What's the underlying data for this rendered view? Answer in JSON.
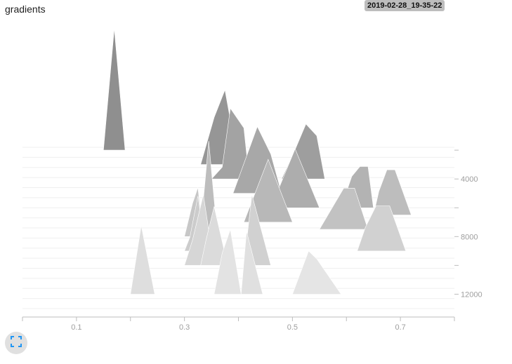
{
  "header": {
    "title": "gradients",
    "run_timestamp": "2019-02-28_19-35-22"
  },
  "controls": {
    "fit_icon": "fit-to-domain-icon",
    "accent_color": "#2196f3"
  },
  "chart_data": {
    "type": "area",
    "style": "offset histogram (ridgeline)",
    "title": "gradients",
    "x_ticks": [
      "0.1",
      "0.3",
      "0.5",
      "0.7"
    ],
    "y_ticks": [
      "4000",
      "8000",
      "12000"
    ],
    "xlim": [
      0.0,
      0.8
    ],
    "ylim": [
      1800,
      13000
    ],
    "grid": false,
    "series": [
      {
        "step": 2000,
        "color": "#8f8f8f",
        "points": [
          [
            0.15,
            0
          ],
          [
            0.17,
            6.2
          ],
          [
            0.19,
            0
          ]
        ]
      },
      {
        "step": 3000,
        "color": "#969696",
        "points": [
          [
            0.33,
            0
          ],
          [
            0.355,
            2.4
          ],
          [
            0.375,
            3.8
          ],
          [
            0.4,
            0
          ]
        ]
      },
      {
        "step": 4000,
        "color": "#a3a3a3",
        "points": [
          [
            0.35,
            0
          ],
          [
            0.37,
            0.6
          ],
          [
            0.385,
            3.6
          ],
          [
            0.41,
            2.6
          ],
          [
            0.42,
            0
          ]
        ]
      },
      {
        "step": 4000,
        "color": "#9e9e9e",
        "points": [
          [
            0.48,
            0
          ],
          [
            0.505,
            1.5
          ],
          [
            0.525,
            2.8
          ],
          [
            0.545,
            2.2
          ],
          [
            0.56,
            0
          ]
        ]
      },
      {
        "step": 5000,
        "color": "#a8a8a8",
        "points": [
          [
            0.39,
            0
          ],
          [
            0.435,
            3.4
          ],
          [
            0.46,
            2.0
          ],
          [
            0.48,
            0
          ]
        ]
      },
      {
        "step": 6000,
        "color": "#adadad",
        "points": [
          [
            0.46,
            0
          ],
          [
            0.49,
            2.0
          ],
          [
            0.505,
            3.0
          ],
          [
            0.55,
            0
          ]
        ]
      },
      {
        "step": 6000,
        "color": "#b3b3b3",
        "points": [
          [
            0.59,
            0
          ],
          [
            0.61,
            1.6
          ],
          [
            0.625,
            2.1
          ],
          [
            0.64,
            2.1
          ],
          [
            0.65,
            0
          ]
        ]
      },
      {
        "step": 6500,
        "color": "#bdbdbd",
        "points": [
          [
            0.65,
            0
          ],
          [
            0.66,
            1.2
          ],
          [
            0.675,
            2.3
          ],
          [
            0.69,
            2.3
          ],
          [
            0.72,
            0
          ]
        ]
      },
      {
        "step": 7000,
        "color": "#b8b8b8",
        "points": [
          [
            0.41,
            0
          ],
          [
            0.455,
            3.2
          ],
          [
            0.5,
            0
          ]
        ]
      },
      {
        "step": 7500,
        "color": "#bdbdbd",
        "points": [
          [
            0.33,
            0
          ],
          [
            0.345,
            4.5
          ],
          [
            0.36,
            0
          ]
        ]
      },
      {
        "step": 7500,
        "color": "#c2c2c2",
        "points": [
          [
            0.55,
            0
          ],
          [
            0.595,
            2.1
          ],
          [
            0.615,
            2.1
          ],
          [
            0.64,
            0
          ]
        ]
      },
      {
        "step": 8000,
        "color": "#c7c7c7",
        "points": [
          [
            0.3,
            0
          ],
          [
            0.315,
            1.7
          ],
          [
            0.325,
            2.5
          ],
          [
            0.335,
            0
          ]
        ]
      },
      {
        "step": 9000,
        "color": "#cccccc",
        "points": [
          [
            0.3,
            0
          ],
          [
            0.31,
            0.7
          ],
          [
            0.325,
            2.8
          ],
          [
            0.34,
            0
          ]
        ]
      },
      {
        "step": 9000,
        "color": "#d1d1d1",
        "points": [
          [
            0.62,
            0
          ],
          [
            0.635,
            1.2
          ],
          [
            0.655,
            2.3
          ],
          [
            0.68,
            2.3
          ],
          [
            0.71,
            0
          ]
        ]
      },
      {
        "step": 10000,
        "color": "#d1d1d1",
        "points": [
          [
            0.41,
            0
          ],
          [
            0.425,
            3.6
          ],
          [
            0.46,
            0
          ]
        ]
      },
      {
        "step": 10000,
        "color": "#d6d6d6",
        "points": [
          [
            0.3,
            0
          ],
          [
            0.315,
            1.3
          ],
          [
            0.335,
            3.6
          ],
          [
            0.355,
            0
          ]
        ]
      },
      {
        "step": 10000,
        "color": "#dbdbdb",
        "points": [
          [
            0.33,
            0
          ],
          [
            0.34,
            1.3
          ],
          [
            0.355,
            3.0
          ],
          [
            0.38,
            0
          ]
        ]
      },
      {
        "step": 12000,
        "color": "#dedede",
        "points": [
          [
            0.2,
            0
          ],
          [
            0.22,
            3.5
          ],
          [
            0.245,
            0
          ]
        ]
      },
      {
        "step": 12000,
        "color": "#e3e3e3",
        "points": [
          [
            0.355,
            0
          ],
          [
            0.37,
            2.1
          ],
          [
            0.385,
            3.3
          ],
          [
            0.405,
            0
          ]
        ]
      },
      {
        "step": 12000,
        "color": "#e0e0e0",
        "points": [
          [
            0.405,
            0
          ],
          [
            0.415,
            3.2
          ],
          [
            0.445,
            0
          ]
        ]
      },
      {
        "step": 12000,
        "color": "#e5e5e5",
        "points": [
          [
            0.5,
            0
          ],
          [
            0.53,
            2.2
          ],
          [
            0.545,
            1.8
          ],
          [
            0.59,
            0
          ]
        ]
      }
    ]
  }
}
